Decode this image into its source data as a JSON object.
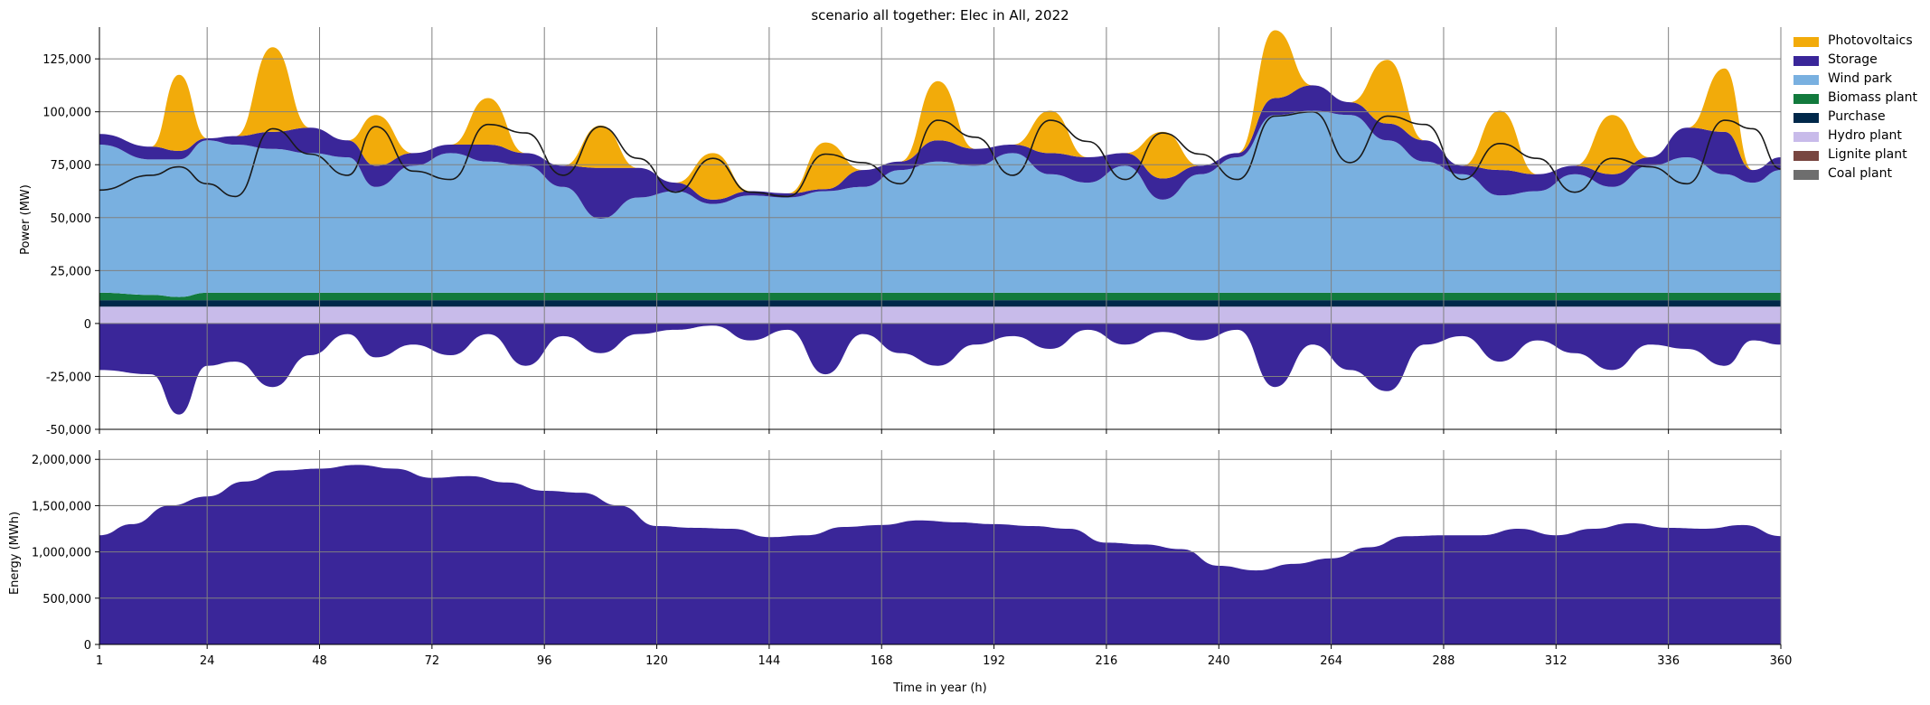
{
  "chart_data": [
    {
      "type": "area",
      "title": "scenario all together: Elec in All, 2022",
      "ylabel": "Power (MW)",
      "xlim": [
        1,
        360
      ],
      "ylim": [
        -50000,
        140000
      ],
      "x_ticks": [
        1,
        24,
        48,
        72,
        96,
        120,
        144,
        168,
        192,
        216,
        240,
        264,
        288,
        312,
        336,
        360
      ],
      "y_ticks": [
        -50000,
        -25000,
        0,
        25000,
        50000,
        75000,
        100000,
        125000
      ],
      "y_tick_labels": [
        "-50,000",
        "-25,000",
        "0",
        "25,000",
        "50,000",
        "75,000",
        "100,000",
        "125,000"
      ],
      "grid": true,
      "stacked": true,
      "x": [
        1,
        12,
        18,
        24,
        30,
        38,
        46,
        54,
        60,
        68,
        76,
        84,
        92,
        100,
        108,
        116,
        124,
        132,
        140,
        148,
        156,
        164,
        172,
        180,
        188,
        196,
        204,
        212,
        220,
        228,
        236,
        244,
        252,
        260,
        268,
        276,
        284,
        292,
        300,
        308,
        316,
        324,
        332,
        340,
        348,
        354,
        360
      ],
      "series": [
        {
          "name": "Hydro plant",
          "values": [
            8000,
            8000,
            8000,
            8000,
            8000,
            8000,
            8000,
            8000,
            8000,
            8000,
            8000,
            8000,
            8000,
            8000,
            8000,
            8000,
            8000,
            8000,
            8000,
            8000,
            8000,
            8000,
            8000,
            8000,
            8000,
            8000,
            8000,
            8000,
            8000,
            8000,
            8000,
            8000,
            8000,
            8000,
            8000,
            8000,
            8000,
            8000,
            8000,
            8000,
            8000,
            8000,
            8000,
            8000,
            8000,
            8000,
            8000
          ]
        },
        {
          "name": "Purchase",
          "values": [
            3000,
            3000,
            3000,
            3000,
            3000,
            3000,
            3000,
            3000,
            3000,
            3000,
            3000,
            3000,
            3000,
            3000,
            3000,
            3000,
            3000,
            3000,
            3000,
            3000,
            3000,
            3000,
            3000,
            3000,
            3000,
            3000,
            3000,
            3000,
            3000,
            3000,
            3000,
            3000,
            3000,
            3000,
            3000,
            3000,
            3000,
            3000,
            3000,
            3000,
            3000,
            3000,
            3000,
            3000,
            3000,
            3000,
            3000
          ]
        },
        {
          "name": "Biomass plant",
          "values": [
            3500,
            2500,
            1500,
            3500,
            3500,
            3500,
            3500,
            3500,
            3500,
            3500,
            3500,
            3500,
            3500,
            3500,
            3500,
            3500,
            3500,
            3500,
            3500,
            3500,
            3500,
            3500,
            3500,
            3500,
            3500,
            3500,
            3500,
            3500,
            3500,
            3500,
            3500,
            3500,
            3500,
            3500,
            3500,
            3500,
            3500,
            3500,
            3500,
            3500,
            3500,
            3500,
            3500,
            3500,
            3500,
            3500,
            3500
          ]
        },
        {
          "name": "Wind park",
          "values": [
            70000,
            64000,
            65000,
            72000,
            70000,
            68000,
            66000,
            64000,
            50000,
            60000,
            66000,
            62000,
            60000,
            50000,
            35000,
            45000,
            48000,
            42000,
            46000,
            45000,
            48000,
            50000,
            58000,
            62000,
            60000,
            66000,
            56000,
            52000,
            60000,
            44000,
            56000,
            64000,
            84000,
            86000,
            84000,
            72000,
            62000,
            56000,
            46000,
            48000,
            56000,
            50000,
            60000,
            64000,
            56000,
            52000,
            58000
          ]
        },
        {
          "name": "Storage",
          "values": [
            5000,
            6000,
            4000,
            1000,
            4000,
            8000,
            12000,
            8000,
            10000,
            6000,
            4000,
            8000,
            6000,
            10000,
            24000,
            14000,
            4000,
            2000,
            2000,
            2000,
            1000,
            8000,
            4000,
            10000,
            8000,
            4000,
            10000,
            12000,
            6000,
            10000,
            4000,
            2000,
            8000,
            12000,
            6000,
            8000,
            10000,
            4000,
            12000,
            8000,
            4000,
            6000,
            4000,
            14000,
            20000,
            6000,
            6000
          ]
        },
        {
          "name": "Photovoltaics",
          "values": [
            0,
            0,
            36000,
            0,
            0,
            40000,
            0,
            0,
            24000,
            0,
            0,
            22000,
            0,
            0,
            20000,
            0,
            0,
            22000,
            0,
            0,
            22000,
            0,
            0,
            28000,
            0,
            0,
            20000,
            0,
            0,
            22000,
            0,
            0,
            32000,
            0,
            0,
            30000,
            0,
            0,
            28000,
            0,
            0,
            28000,
            0,
            0,
            30000,
            0,
            0
          ]
        },
        {
          "name": "Lignite plant",
          "values": [
            0,
            0,
            0,
            0,
            0,
            0,
            0,
            0,
            0,
            0,
            0,
            0,
            0,
            0,
            0,
            0,
            0,
            0,
            0,
            0,
            0,
            0,
            0,
            0,
            0,
            0,
            0,
            0,
            0,
            0,
            0,
            0,
            0,
            0,
            0,
            0,
            0,
            0,
            0,
            0,
            0,
            0,
            0,
            0,
            0,
            0,
            0
          ]
        },
        {
          "name": "Coal plant",
          "values": [
            0,
            0,
            0,
            0,
            0,
            0,
            0,
            0,
            0,
            0,
            0,
            0,
            0,
            0,
            0,
            0,
            0,
            0,
            0,
            0,
            0,
            0,
            0,
            0,
            0,
            0,
            0,
            0,
            0,
            0,
            0,
            0,
            0,
            0,
            0,
            0,
            0,
            0,
            0,
            0,
            0,
            0,
            0,
            0,
            0,
            0,
            0
          ]
        }
      ],
      "storage_charging": {
        "name": "Storage",
        "values": [
          -22000,
          -24000,
          -43000,
          -20000,
          -18000,
          -30000,
          -15000,
          -5000,
          -16000,
          -10000,
          -15000,
          -5000,
          -20000,
          -6000,
          -14000,
          -5000,
          -3000,
          -1000,
          -8000,
          -3000,
          -24000,
          -5000,
          -14000,
          -20000,
          -10000,
          -6000,
          -12000,
          -3000,
          -10000,
          -4000,
          -8000,
          -3000,
          -30000,
          -10000,
          -22000,
          -32000,
          -10000,
          -6000,
          -18000,
          -8000,
          -14000,
          -22000,
          -10000,
          -12000,
          -20000,
          -8000,
          -10000
        ]
      },
      "demand_line": [
        63000,
        70000,
        74000,
        66000,
        60000,
        92000,
        80000,
        70000,
        93000,
        72000,
        68000,
        94000,
        90000,
        70000,
        93000,
        78000,
        62000,
        78000,
        62000,
        60000,
        80000,
        76000,
        66000,
        96000,
        88000,
        70000,
        96000,
        86000,
        68000,
        90000,
        80000,
        68000,
        98000,
        100000,
        76000,
        98000,
        94000,
        68000,
        85000,
        78000,
        62000,
        78000,
        74000,
        66000,
        96000,
        92000,
        73000
      ],
      "colors": {
        "Photovoltaics": "#f2ab0a",
        "Storage": "#3a2699",
        "Wind park": "#79b0e0",
        "Biomass plant": "#127a3d",
        "Purchase": "#00284a",
        "Hydro plant": "#c8bbea",
        "Lignite plant": "#784640",
        "Coal plant": "#6e6e6e",
        "demand_line": "#1a1a1a"
      },
      "legend_position": "right-top"
    },
    {
      "type": "area",
      "title": "",
      "xlabel": "Time in year (h)",
      "ylabel": "Energy (MWh)",
      "xlim": [
        1,
        360
      ],
      "ylim": [
        0,
        2100000
      ],
      "x_ticks": [
        1,
        24,
        48,
        72,
        96,
        120,
        144,
        168,
        192,
        216,
        240,
        264,
        288,
        312,
        336,
        360
      ],
      "x_tick_labels": [
        "1",
        "24",
        "48",
        "72",
        "96",
        "120",
        "144",
        "168",
        "192",
        "216",
        "240",
        "264",
        "288",
        "312",
        "336",
        "360"
      ],
      "y_ticks": [
        0,
        500000,
        1000000,
        1500000,
        2000000
      ],
      "y_tick_labels": [
        "0",
        "500,000",
        "1,000,000",
        "1,500,000",
        "2,000,000"
      ],
      "grid": true,
      "x": [
        1,
        8,
        16,
        24,
        32,
        40,
        48,
        56,
        64,
        72,
        80,
        88,
        96,
        104,
        112,
        120,
        128,
        136,
        144,
        152,
        160,
        168,
        176,
        184,
        192,
        200,
        208,
        216,
        224,
        232,
        240,
        248,
        256,
        264,
        272,
        280,
        288,
        296,
        304,
        312,
        320,
        328,
        336,
        344,
        352,
        360
      ],
      "series": [
        {
          "name": "Storage",
          "values": [
            1180000,
            1300000,
            1500000,
            1600000,
            1760000,
            1880000,
            1900000,
            1940000,
            1900000,
            1800000,
            1820000,
            1750000,
            1660000,
            1640000,
            1500000,
            1280000,
            1260000,
            1250000,
            1160000,
            1180000,
            1270000,
            1290000,
            1340000,
            1320000,
            1300000,
            1280000,
            1250000,
            1100000,
            1080000,
            1030000,
            850000,
            800000,
            870000,
            930000,
            1050000,
            1170000,
            1180000,
            1180000,
            1250000,
            1180000,
            1250000,
            1310000,
            1260000,
            1250000,
            1290000,
            1170000
          ]
        }
      ],
      "colors": {
        "Storage": "#3a2699"
      }
    }
  ]
}
